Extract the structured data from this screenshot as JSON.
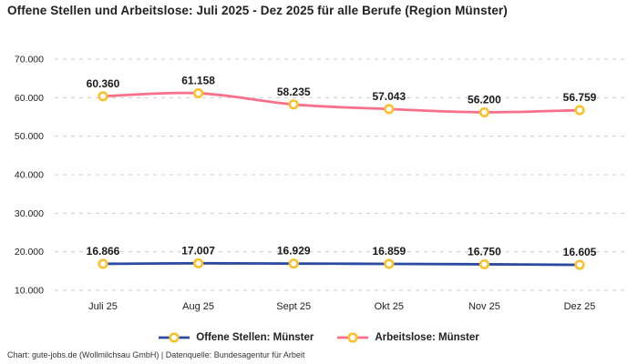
{
  "title": "Offene Stellen und Arbeitslose: Juli 2025 - Dez 2025 für alle Berufe (Region Münster)",
  "footer": "Chart: gute-jobs.de (Wollmilchsau GmbH) | Datenquelle: Bundesagentur für Arbeit",
  "colors": {
    "marker_ring": "#FBC12D",
    "marker_fill": "#FFFFFF",
    "grid": "#CCCCCC",
    "axis_text": "#222222",
    "data_label": "#1A1A1A",
    "background": "#FFFFFF"
  },
  "chart_data": {
    "type": "line",
    "title": "Offene Stellen und Arbeitslose: Juli 2025 - Dez 2025 für alle Berufe (Region Münster)",
    "categories": [
      "Juli 25",
      "Aug 25",
      "Sept 25",
      "Okt 25",
      "Nov 25",
      "Dez 25"
    ],
    "series": [
      {
        "name": "Offene Stellen: Münster",
        "color": "#2B4AA0",
        "values": [
          16866,
          17007,
          16929,
          16859,
          16750,
          16605
        ]
      },
      {
        "name": "Arbeitslose: Münster",
        "color": "#F9708A",
        "values": [
          60360,
          61158,
          58235,
          57043,
          56200,
          56759
        ]
      }
    ],
    "data_labels": [
      [
        "16.866",
        "17.007",
        "16.929",
        "16.859",
        "16.750",
        "16.605"
      ],
      [
        "60.360",
        "61.158",
        "58.235",
        "57.043",
        "56.200",
        "56.759"
      ]
    ],
    "xlabel": "",
    "ylabel": "",
    "ylim": [
      10000,
      70000
    ],
    "yticks": [
      10000,
      20000,
      30000,
      40000,
      50000,
      60000,
      70000
    ],
    "ytick_labels": [
      "10.000",
      "20.000",
      "30.000",
      "40.000",
      "50.000",
      "60.000",
      "70.000"
    ],
    "grid": "horizontal-dashed",
    "legend_position": "bottom",
    "number_format": "de"
  }
}
